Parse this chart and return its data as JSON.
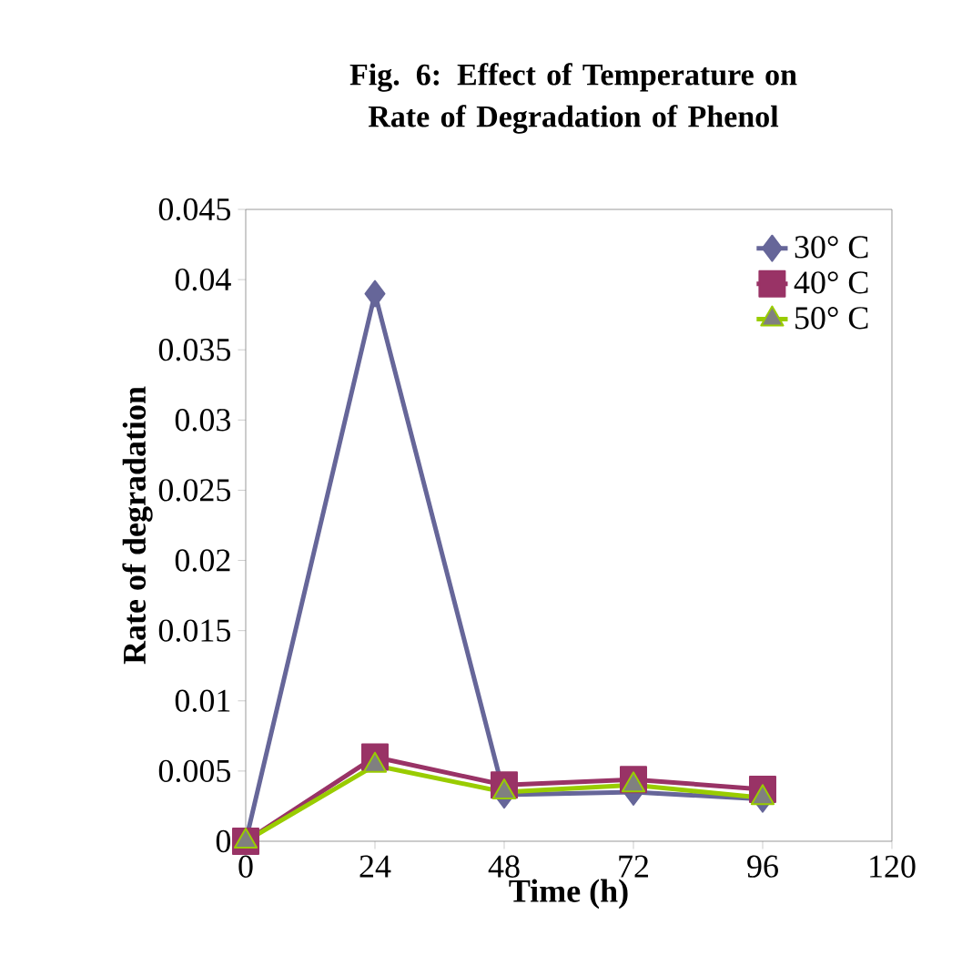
{
  "chart_data": {
    "type": "line",
    "title": "Fig. 6: Effect of Temperature on Rate of Degradation of Phenol",
    "xlabel": "Time (h)",
    "ylabel": "Rate of degradation",
    "x": [
      0,
      24,
      48,
      72,
      96
    ],
    "series": [
      {
        "name": "30° C",
        "color": "#666699",
        "marker": "diamond",
        "values": [
          0,
          0.039,
          0.0033,
          0.0035,
          0.003
        ]
      },
      {
        "name": "40° C",
        "color": "#993366",
        "marker": "square",
        "values": [
          0,
          0.006,
          0.004,
          0.0044,
          0.0037
        ]
      },
      {
        "name": "50° C",
        "color": "#99cc00",
        "marker": "triangle",
        "values": [
          0,
          0.0054,
          0.0035,
          0.004,
          0.0031
        ]
      }
    ],
    "xlim": [
      0,
      120
    ],
    "xticks": [
      0,
      24,
      48,
      72,
      96,
      120
    ],
    "ylim": [
      0,
      0.045
    ],
    "yticks": [
      0,
      0.005,
      0.01,
      0.015,
      0.02,
      0.025,
      0.03,
      0.035,
      0.04,
      0.045
    ],
    "grid": false,
    "legend": "top right",
    "line_style": "solid"
  }
}
